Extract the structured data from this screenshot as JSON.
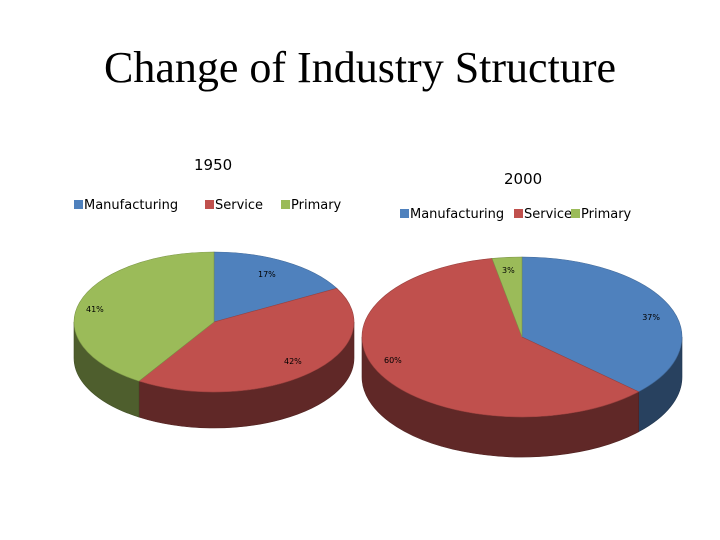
{
  "slide": {
    "title": "Change of Industry Structure"
  },
  "chart_data": [
    {
      "type": "pie",
      "title": "1950",
      "categories": [
        "Manufacturing",
        "Service",
        "Primary"
      ],
      "values": [
        17,
        42,
        41
      ],
      "labels": [
        "17%",
        "42%",
        "41%"
      ],
      "colors": [
        "#4F81BD",
        "#C0504D",
        "#9BBB59"
      ],
      "legend": "top",
      "style": "3d"
    },
    {
      "type": "pie",
      "title": "2000",
      "categories": [
        "Manufacturing",
        "Service",
        "Primary"
      ],
      "values": [
        37,
        60,
        3
      ],
      "labels": [
        "37%",
        "60%",
        "3%"
      ],
      "colors": [
        "#4F81BD",
        "#C0504D",
        "#9BBB59"
      ],
      "legend": "top",
      "style": "3d"
    }
  ]
}
